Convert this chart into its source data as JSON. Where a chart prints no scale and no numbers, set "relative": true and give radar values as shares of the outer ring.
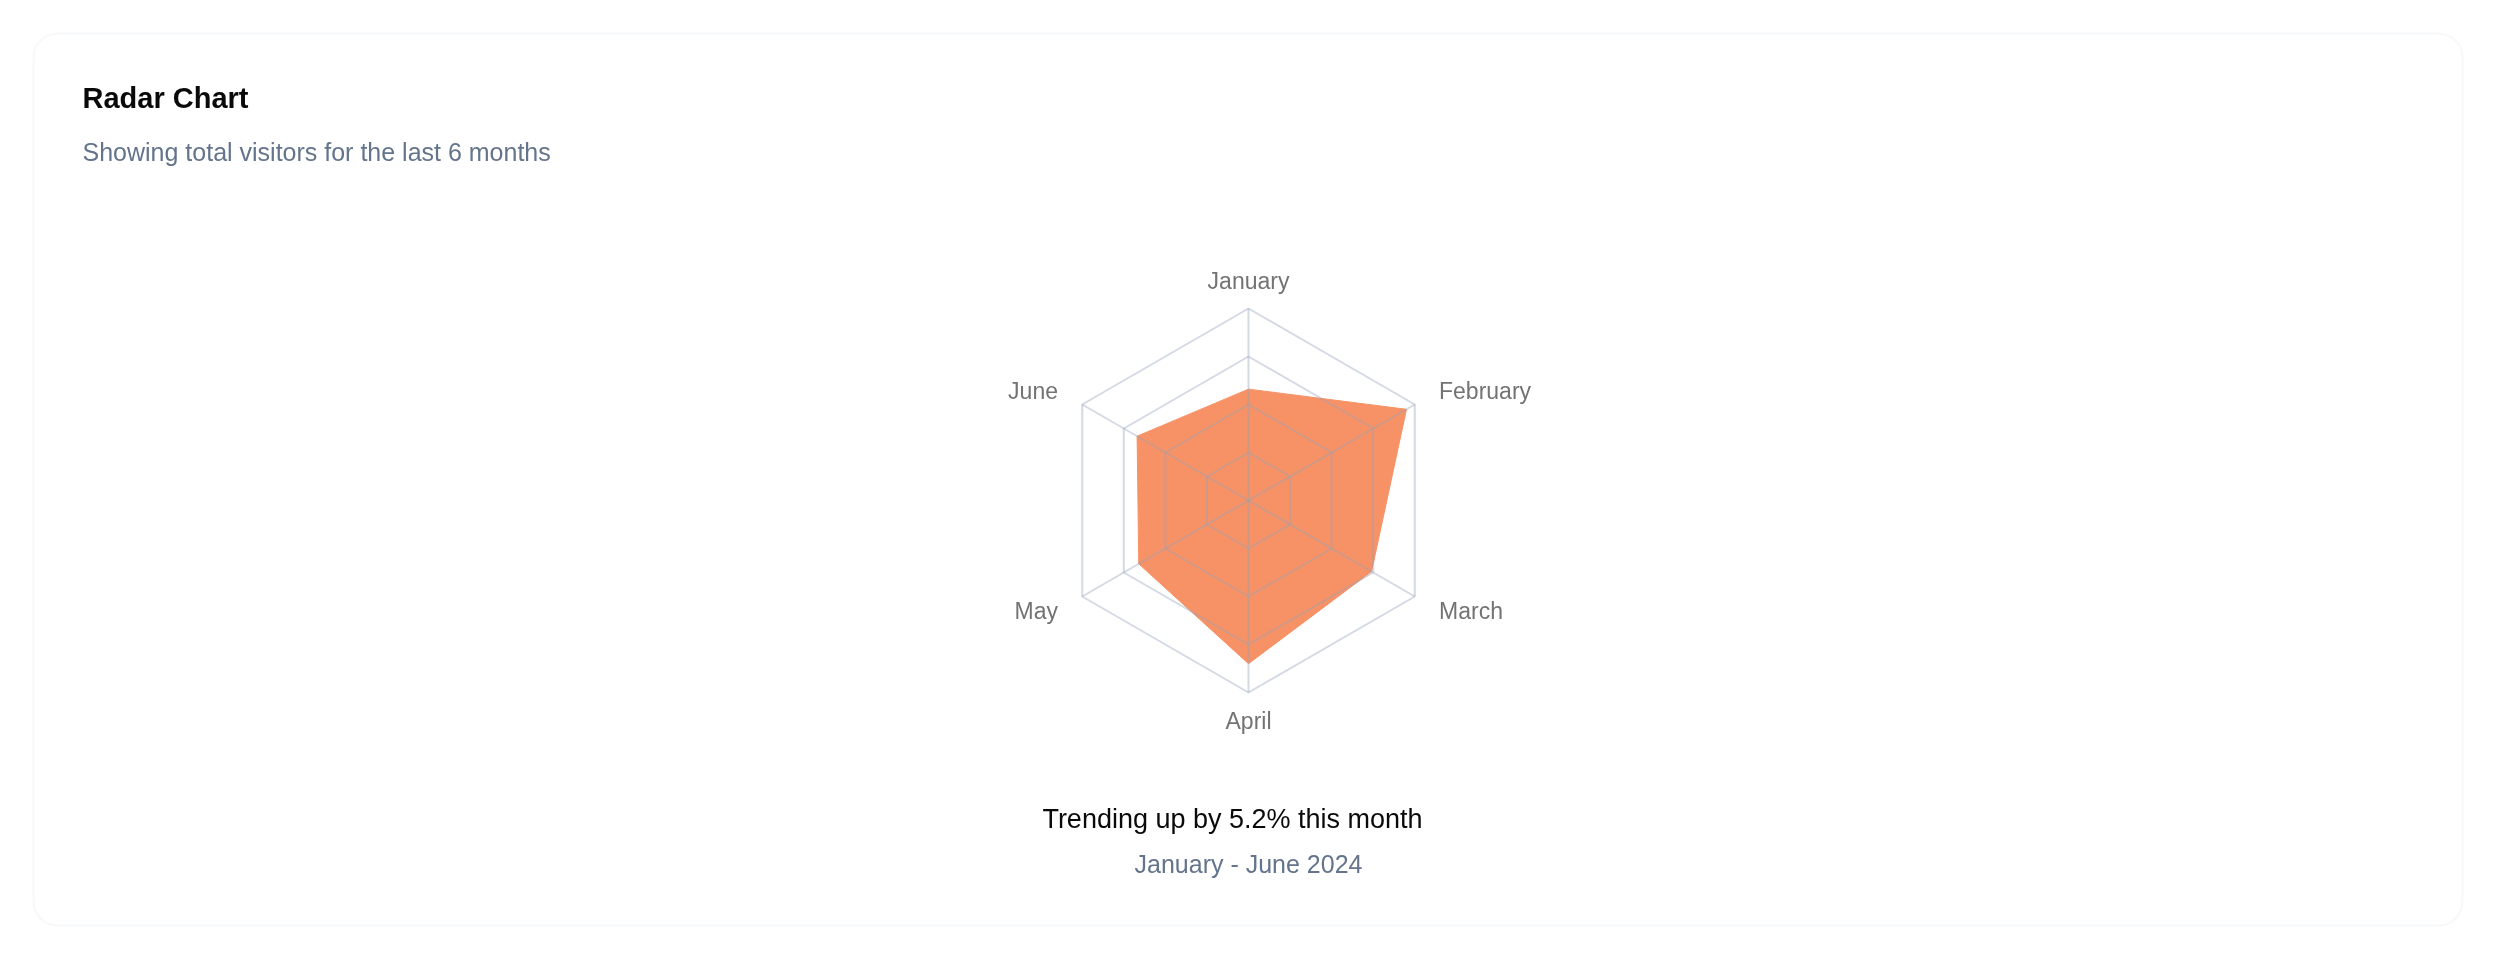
{
  "chart_data": {
    "type": "radar",
    "title": "Radar Chart",
    "subtitle": "Showing total visitors for the last 6 months",
    "categories": [
      "January",
      "February",
      "March",
      "April",
      "May",
      "June"
    ],
    "relative": true,
    "series": [
      {
        "color": "#f79266",
        "values": [
          0.58,
          0.95,
          0.74,
          0.85,
          0.66,
          0.67
        ]
      }
    ],
    "grid": true,
    "annotations": [
      "Trending up by 5.2% this month",
      "January - June 2024"
    ]
  }
}
